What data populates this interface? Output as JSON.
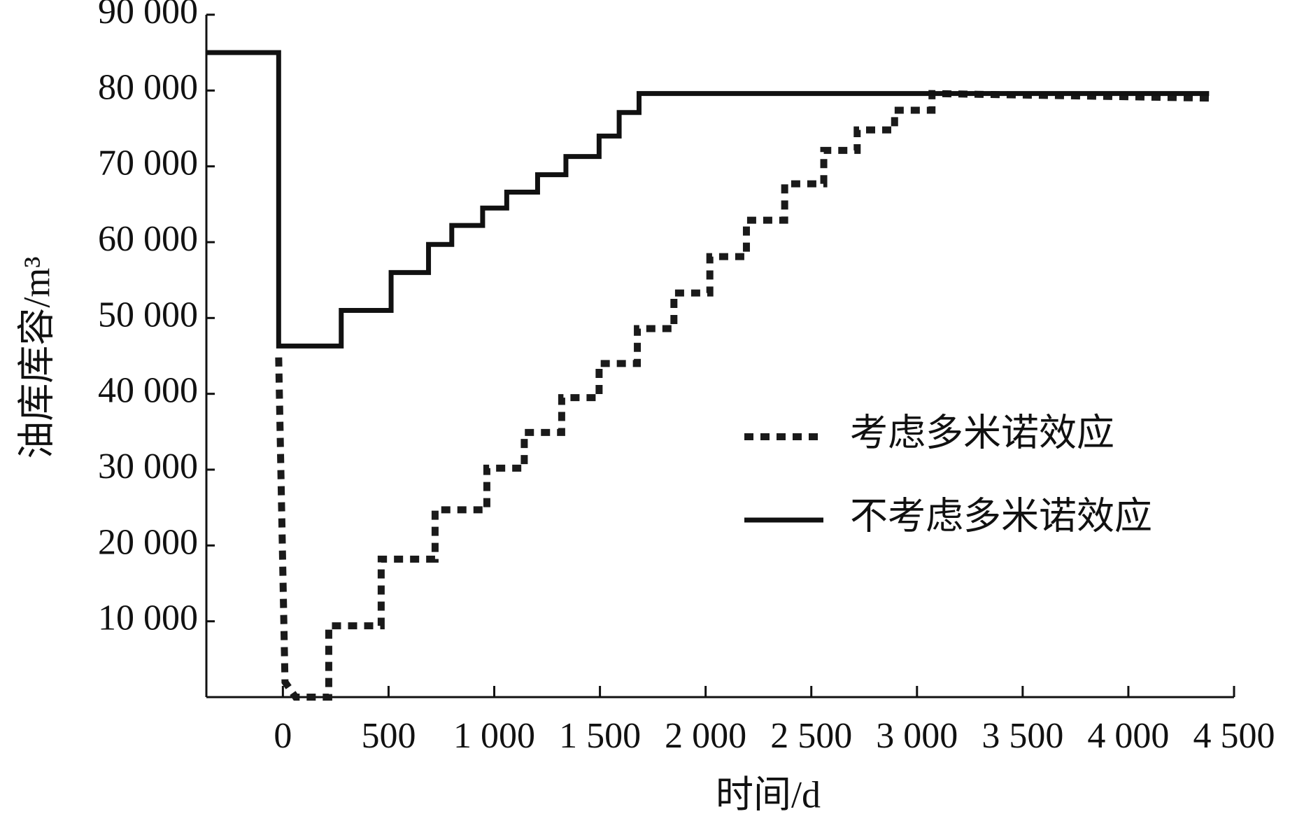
{
  "chart_data": {
    "type": "line",
    "x_label": "时间/d",
    "y_label": "油库库容/m³",
    "xlim": [
      -362,
      4500
    ],
    "ylim": [
      0,
      90000
    ],
    "xticks": [
      {
        "value": 0,
        "label": "0"
      },
      {
        "value": 500,
        "label": "500"
      },
      {
        "value": 1000,
        "label": "1 000"
      },
      {
        "value": 1500,
        "label": "1 500"
      },
      {
        "value": 2000,
        "label": "2 000"
      },
      {
        "value": 2500,
        "label": "2 500"
      },
      {
        "value": 3000,
        "label": "3 000"
      },
      {
        "value": 3500,
        "label": "3 500"
      },
      {
        "value": 4000,
        "label": "4 000"
      },
      {
        "value": 4500,
        "label": "4 500"
      }
    ],
    "yticks": [
      {
        "value": 10000,
        "label": "10 000"
      },
      {
        "value": 20000,
        "label": "20 000"
      },
      {
        "value": 30000,
        "label": "30 000"
      },
      {
        "value": 40000,
        "label": "40 000"
      },
      {
        "value": 50000,
        "label": "50 000"
      },
      {
        "value": 60000,
        "label": "60 000"
      },
      {
        "value": 70000,
        "label": "70 000"
      },
      {
        "value": 80000,
        "label": "80 000"
      },
      {
        "value": 90000,
        "label": "90 000"
      }
    ],
    "legend": "right",
    "series": [
      {
        "name": "考虑多米诺效应",
        "color": "#1a1a1a",
        "style": "dotted",
        "x": [
          -20,
          10,
          60,
          217,
          217,
          465,
          465,
          720,
          720,
          965,
          965,
          1142,
          1142,
          1319,
          1319,
          1496,
          1496,
          1677,
          1677,
          1850,
          1850,
          2020,
          2020,
          2193,
          2193,
          2374,
          2374,
          2559,
          2559,
          2717,
          2717,
          2894,
          2894,
          3071,
          3071,
          4382
        ],
        "values": [
          44800,
          2000,
          0,
          0,
          9400,
          9400,
          18200,
          18200,
          24700,
          24700,
          30200,
          30200,
          34900,
          34900,
          39500,
          39500,
          44000,
          44000,
          48600,
          48600,
          53300,
          53300,
          58100,
          58100,
          62900,
          62900,
          67700,
          67700,
          72100,
          72100,
          74800,
          74800,
          77400,
          77400,
          79600,
          79000
        ]
      },
      {
        "name": "不考虑多米诺效应",
        "color": "#111111",
        "style": "solid",
        "x": [
          -362,
          -20,
          -20,
          276,
          276,
          512,
          512,
          689,
          689,
          799,
          799,
          945,
          945,
          1059,
          1059,
          1205,
          1205,
          1339,
          1339,
          1496,
          1496,
          1591,
          1591,
          1685,
          1685,
          4382
        ],
        "values": [
          85000,
          85000,
          46300,
          46300,
          51000,
          51000,
          56000,
          56000,
          59700,
          59700,
          62200,
          62200,
          64500,
          64500,
          66600,
          66600,
          68900,
          68900,
          71300,
          71300,
          74000,
          74000,
          77100,
          77100,
          79600,
          79600
        ]
      }
    ]
  }
}
